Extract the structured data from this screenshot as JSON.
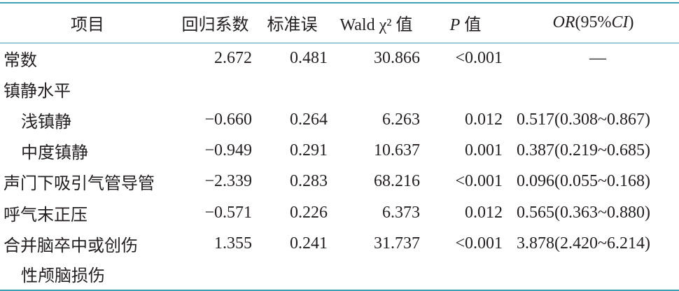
{
  "table": {
    "header": [
      [
        {
          "text": "项目"
        }
      ],
      [
        {
          "text": "回归系数"
        }
      ],
      [
        {
          "text": "标准误"
        }
      ],
      [
        {
          "text": "Wald χ² 值"
        }
      ],
      [
        {
          "text": "P",
          "italic": true
        },
        {
          "text": " 值"
        }
      ],
      [
        {
          "text": "OR",
          "italic": true
        },
        {
          "text": "(95%"
        },
        {
          "text": "CI",
          "italic": true
        },
        {
          "text": ")"
        }
      ]
    ],
    "rows": [
      {
        "cells": [
          "常数",
          "2.672",
          "0.481",
          "30.866",
          "<0.001",
          "—"
        ]
      },
      {
        "cells": [
          "镇静水平"
        ]
      },
      {
        "indent": true,
        "cells": [
          "浅镇静",
          "−0.660",
          "0.264",
          "6.263",
          "0.012",
          "0.517(0.308~0.867)"
        ]
      },
      {
        "indent": true,
        "cells": [
          "中度镇静",
          "−0.949",
          "0.291",
          "10.637",
          "0.001",
          "0.387(0.219~0.685)"
        ]
      },
      {
        "cells": [
          "声门下吸引气管导管",
          "−2.339",
          "0.283",
          "68.216",
          "<0.001",
          "0.096(0.055~0.168)"
        ]
      },
      {
        "cells": [
          "呼气末正压",
          "−0.571",
          "0.226",
          "6.373",
          "0.012",
          "0.565(0.363~0.880)"
        ]
      },
      {
        "cells": [
          "合并脑卒中或创伤",
          "1.355",
          "0.241",
          "31.737",
          "<0.001",
          "3.878(2.420~6.214)"
        ]
      },
      {
        "indent": true,
        "cells": [
          "性颅脑损伤"
        ]
      }
    ]
  }
}
